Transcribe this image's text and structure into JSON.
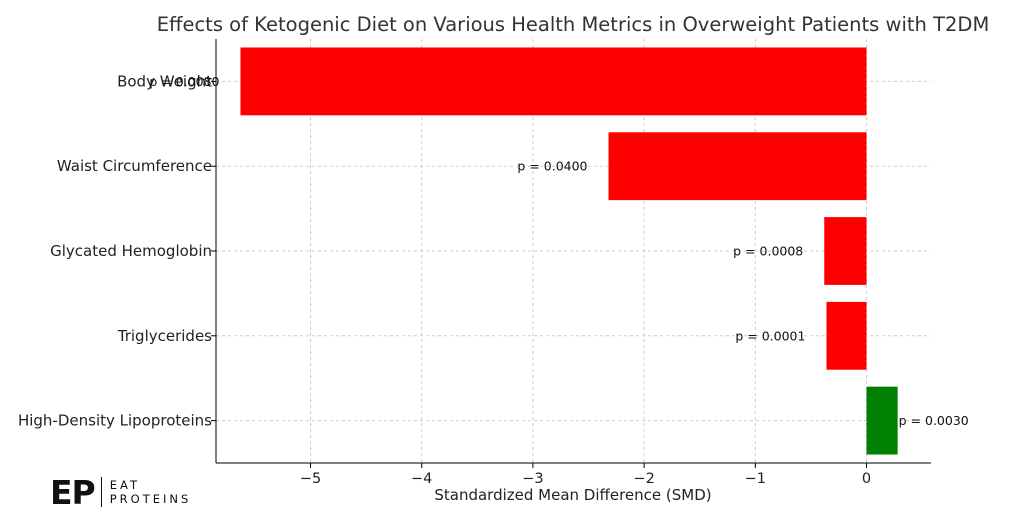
{
  "chart_data": {
    "type": "bar",
    "orientation": "horizontal",
    "title": "Effects of Ketogenic Diet on Various Health Metrics in Overweight Patients with T2DM",
    "xlabel": "Standardized Mean Difference (SMD)",
    "ylabel": "",
    "xlim": [
      -5.85,
      0.58
    ],
    "xticks": [
      -5,
      -4,
      -3,
      -2,
      -1,
      0
    ],
    "xtick_labels": [
      "−5",
      "−4",
      "−3",
      "−2",
      "−1",
      "0"
    ],
    "grid": true,
    "categories": [
      "Body Weight",
      "Waist Circumference",
      "Glycated Hemoglobin",
      "Triglycerides",
      "High-Density Lipoproteins"
    ],
    "values": [
      -5.63,
      -2.32,
      -0.38,
      -0.36,
      0.28
    ],
    "annotations": [
      "p = 0.0080",
      "p = 0.0400",
      "p = 0.0008",
      "p = 0.0001",
      "p = 0.0030"
    ],
    "colors": [
      "#ff0000",
      "#ff0000",
      "#ff0000",
      "#ff0000",
      "#008000"
    ]
  },
  "logo": {
    "mark": "EP",
    "line1": "EAT",
    "line2": "PROTEINS"
  }
}
